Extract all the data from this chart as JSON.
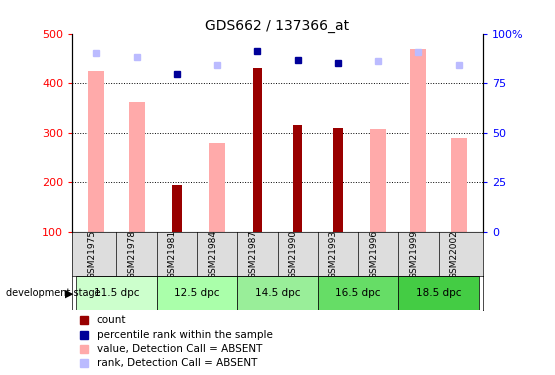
{
  "title": "GDS662 / 137366_at",
  "samples": [
    "GSM21975",
    "GSM21978",
    "GSM21981",
    "GSM21984",
    "GSM21987",
    "GSM21990",
    "GSM21993",
    "GSM21996",
    "GSM21999",
    "GSM22002"
  ],
  "count_values": [
    null,
    null,
    195,
    null,
    430,
    315,
    310,
    null,
    null,
    null
  ],
  "value_absent": [
    425,
    362,
    null,
    280,
    null,
    null,
    null,
    308,
    470,
    290
  ],
  "percentile_dark": [
    null,
    null,
    418,
    null,
    465,
    448,
    440,
    null,
    null,
    null
  ],
  "percentile_light": [
    462,
    453,
    null,
    437,
    null,
    null,
    null,
    445,
    463,
    437
  ],
  "ylim_left": [
    100,
    500
  ],
  "ylim_right": [
    0,
    100
  ],
  "yticks_left": [
    100,
    200,
    300,
    400,
    500
  ],
  "yticks_right": [
    0,
    25,
    50,
    75,
    100
  ],
  "yticklabels_right": [
    "0",
    "25",
    "50",
    "75",
    "100%"
  ],
  "grid_values": [
    200,
    300,
    400
  ],
  "stages": [
    {
      "label": "11.5 dpc",
      "cols": [
        0,
        1
      ],
      "color": "#ccffcc"
    },
    {
      "label": "12.5 dpc",
      "cols": [
        2,
        3
      ],
      "color": "#aaffaa"
    },
    {
      "label": "14.5 dpc",
      "cols": [
        4,
        5
      ],
      "color": "#99ee99"
    },
    {
      "label": "16.5 dpc",
      "cols": [
        6,
        7
      ],
      "color": "#66dd66"
    },
    {
      "label": "18.5 dpc",
      "cols": [
        8,
        9
      ],
      "color": "#44cc44"
    }
  ],
  "bar_width": 0.4,
  "count_color": "#990000",
  "value_absent_color": "#ffaaaa",
  "rank_absent_color": "#bbbbff",
  "percentile_dark_color": "#000099",
  "bg_color": "#ffffff",
  "legend_items": [
    {
      "label": "count",
      "color": "#990000"
    },
    {
      "label": "percentile rank within the sample",
      "color": "#000099"
    },
    {
      "label": "value, Detection Call = ABSENT",
      "color": "#ffaaaa"
    },
    {
      "label": "rank, Detection Call = ABSENT",
      "color": "#bbbbff"
    }
  ]
}
